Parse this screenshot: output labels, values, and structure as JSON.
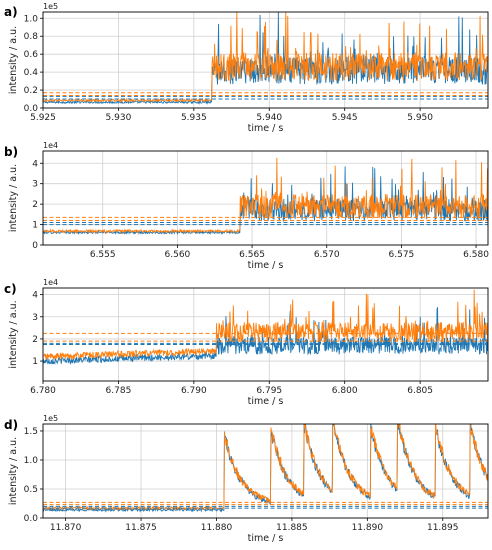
{
  "colors": {
    "blue": "#1f77b4",
    "orange": "#ff7f0e",
    "grid": "#d0d0d0",
    "frame": "#000000"
  },
  "chart_data": [
    {
      "type": "line",
      "panel_label": "a)",
      "xlabel": "time / s",
      "ylabel": "intensity / a.u.",
      "exponent_label": "1e5",
      "xlim": [
        5.925,
        5.9545
      ],
      "ylim": [
        0,
        1.07
      ],
      "xticks": [
        5.925,
        5.93,
        5.935,
        5.94,
        5.945,
        5.95
      ],
      "xtick_labels": [
        "5.925",
        "5.930",
        "5.935",
        "5.940",
        "5.945",
        "5.950"
      ],
      "yticks": [
        0.0,
        0.2,
        0.4,
        0.6,
        0.8,
        1.0
      ],
      "ytick_labels": [
        "0.0",
        "0.2",
        "0.4",
        "0.6",
        "0.8",
        "1.0"
      ],
      "grid": true,
      "event_time": 5.9362,
      "series": [
        {
          "color": "blue",
          "baseline": 0.065,
          "noise_pre": 0.012,
          "level_post": 0.42,
          "noise_post": 0.16,
          "threshold": 0.13,
          "threshold2": 0.1
        },
        {
          "color": "orange",
          "baseline": 0.085,
          "noise_pre": 0.012,
          "level_post": 0.46,
          "noise_post": 0.16,
          "threshold": 0.17,
          "threshold2": 0.14
        }
      ]
    },
    {
      "type": "line",
      "panel_label": "b)",
      "xlabel": "time / s",
      "ylabel": "intensity / a.u.",
      "exponent_label": "1e4",
      "xlim": [
        6.551,
        6.5808
      ],
      "ylim": [
        0,
        4.6
      ],
      "xticks": [
        6.555,
        6.56,
        6.565,
        6.57,
        6.575,
        6.58
      ],
      "xtick_labels": [
        "6.555",
        "6.560",
        "6.565",
        "6.570",
        "6.575",
        "6.580"
      ],
      "yticks": [
        0,
        1,
        2,
        3,
        4
      ],
      "ytick_labels": [
        "0",
        "1",
        "2",
        "3",
        "4"
      ],
      "grid": true,
      "event_time": 6.5642,
      "series": [
        {
          "color": "blue",
          "baseline": 0.62,
          "noise_pre": 0.06,
          "level_post": 1.7,
          "noise_post": 0.55,
          "threshold": 1.1,
          "threshold2": 1.0
        },
        {
          "color": "orange",
          "baseline": 0.68,
          "noise_pre": 0.06,
          "level_post": 1.9,
          "noise_post": 0.6,
          "threshold": 1.35,
          "threshold2": 1.2
        }
      ]
    },
    {
      "type": "line",
      "panel_label": "c)",
      "xlabel": "time / s",
      "ylabel": "intensity / a.u.",
      "exponent_label": "1e4",
      "xlim": [
        6.78,
        6.8095
      ],
      "ylim": [
        0.1,
        4.3
      ],
      "xticks": [
        6.78,
        6.785,
        6.79,
        6.795,
        6.8,
        6.805
      ],
      "xtick_labels": [
        "6.780",
        "6.785",
        "6.790",
        "6.795",
        "6.800",
        "6.805"
      ],
      "yticks": [
        1,
        2,
        3,
        4
      ],
      "ytick_labels": [
        "1",
        "2",
        "3",
        "4"
      ],
      "grid": true,
      "event_time": 6.7915,
      "series": [
        {
          "color": "blue",
          "baseline": 1.0,
          "noise_pre": 0.15,
          "level_post": 1.7,
          "noise_post": 0.4,
          "threshold": 1.8,
          "threshold2": 1.75
        },
        {
          "color": "orange",
          "baseline": 1.2,
          "noise_pre": 0.15,
          "level_post": 2.3,
          "noise_post": 0.45,
          "threshold": 2.25,
          "threshold2": 1.9
        }
      ]
    },
    {
      "type": "line",
      "panel_label": "d)",
      "xlabel": "time / s",
      "ylabel": "intensity / a.u.",
      "exponent_label": "1e5",
      "xlim": [
        11.8685,
        11.898
      ],
      "ylim": [
        0,
        1.62
      ],
      "xticks": [
        11.87,
        11.875,
        11.88,
        11.885,
        11.89,
        11.895
      ],
      "xtick_labels": [
        "11.870",
        "11.875",
        "11.880",
        "11.885",
        "11.890",
        "11.895"
      ],
      "yticks": [
        0.0,
        0.5,
        1.0,
        1.5
      ],
      "ytick_labels": [
        "0.0",
        "0.5",
        "1.0",
        "1.5"
      ],
      "grid": true,
      "event_time": 11.8805,
      "burst_times": [
        11.8805,
        11.8836,
        11.8858,
        11.8877,
        11.8902,
        11.892,
        11.8945,
        11.8968
      ],
      "series": [
        {
          "color": "blue",
          "baseline": 0.14,
          "noise_pre": 0.02,
          "level_post": 0.2,
          "noise_post": 0.06,
          "threshold": 0.2,
          "threshold2": 0.17
        },
        {
          "color": "orange",
          "baseline": 0.17,
          "noise_pre": 0.02,
          "level_post": 0.22,
          "noise_post": 0.06,
          "threshold": 0.27,
          "threshold2": 0.23
        }
      ]
    }
  ]
}
